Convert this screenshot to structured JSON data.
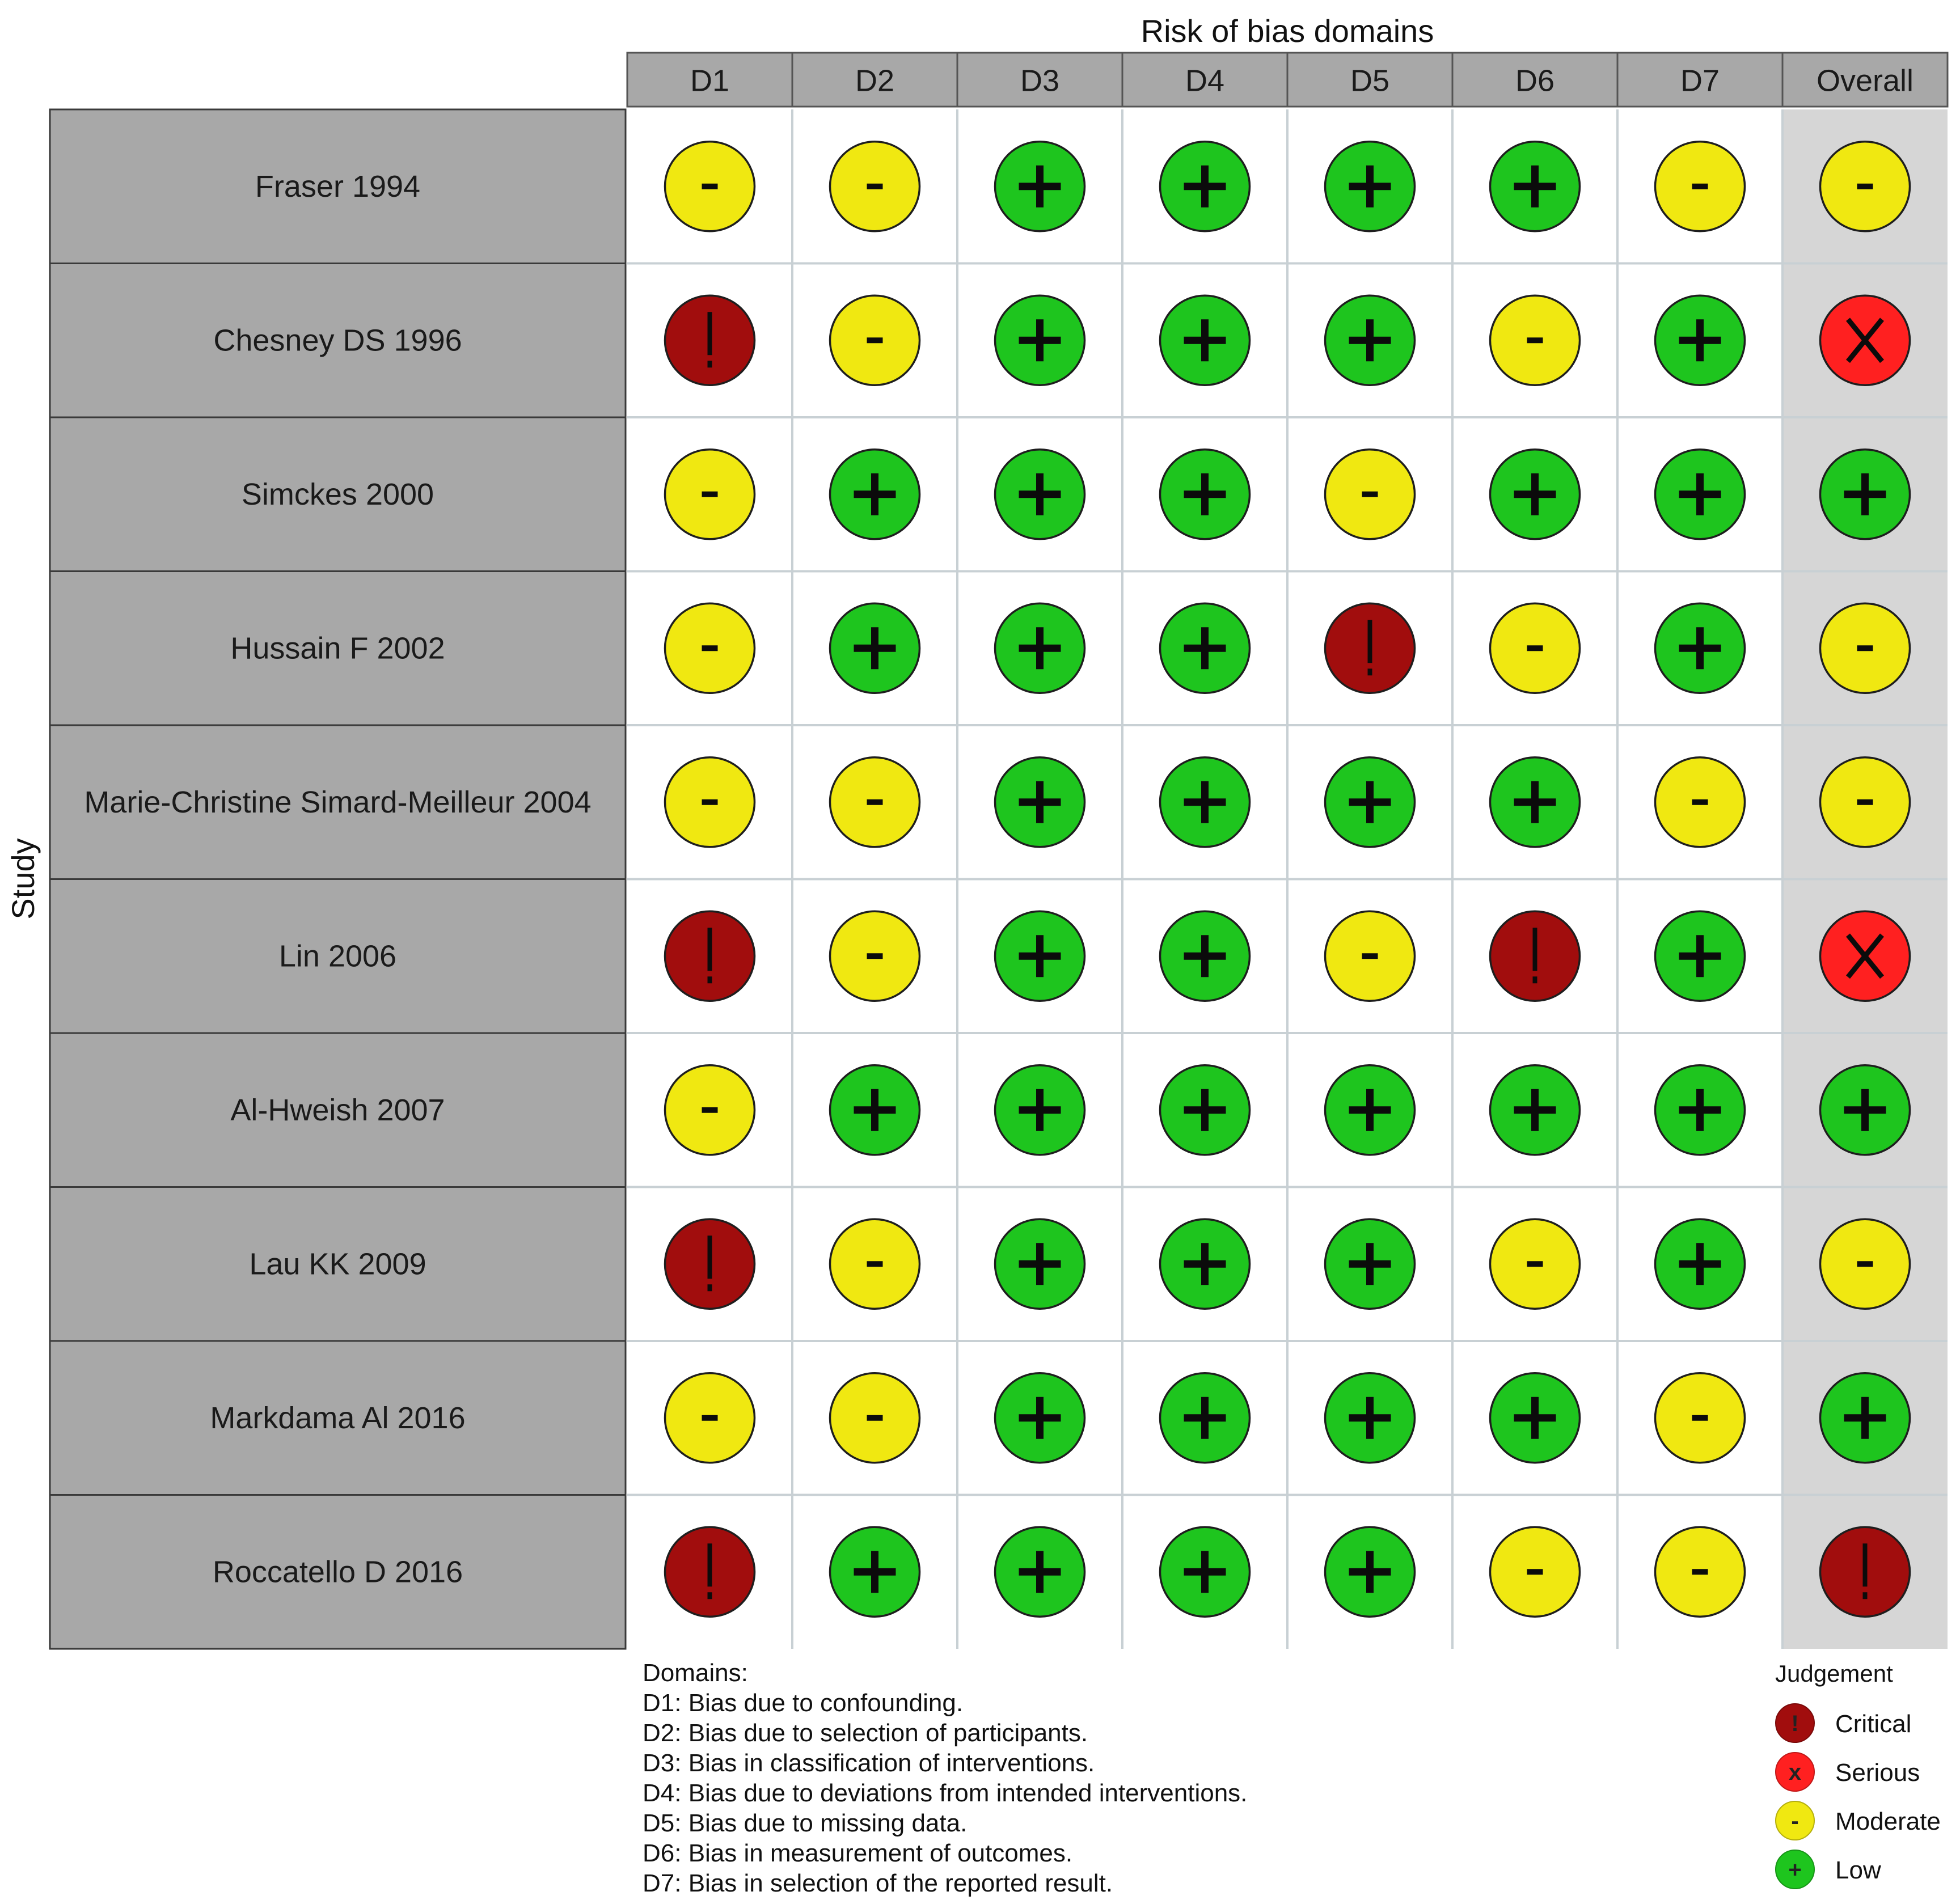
{
  "chart_data": {
    "type": "table",
    "title": "Risk of bias domains",
    "ylabel": "Study",
    "columns": [
      "D1",
      "D2",
      "D3",
      "D4",
      "D5",
      "D6",
      "D7",
      "Overall"
    ],
    "studies": [
      "Fraser 1994",
      "Chesney DS 1996",
      "Simckes 2000",
      "Hussain F 2002",
      "Marie-Christine Simard-Meilleur 2004",
      "Lin 2006",
      "Al-Hweish 2007",
      "Lau KK 2009",
      "Markdama Al 2016",
      "Roccatello D 2016"
    ],
    "judgements": [
      [
        "Moderate",
        "Moderate",
        "Low",
        "Low",
        "Low",
        "Low",
        "Moderate",
        "Moderate"
      ],
      [
        "Critical",
        "Moderate",
        "Low",
        "Low",
        "Low",
        "Moderate",
        "Low",
        "Serious"
      ],
      [
        "Moderate",
        "Low",
        "Low",
        "Low",
        "Moderate",
        "Low",
        "Low",
        "Low"
      ],
      [
        "Moderate",
        "Low",
        "Low",
        "Low",
        "Critical",
        "Moderate",
        "Low",
        "Moderate"
      ],
      [
        "Moderate",
        "Moderate",
        "Low",
        "Low",
        "Low",
        "Low",
        "Moderate",
        "Moderate"
      ],
      [
        "Critical",
        "Moderate",
        "Low",
        "Low",
        "Moderate",
        "Critical",
        "Low",
        "Serious"
      ],
      [
        "Moderate",
        "Low",
        "Low",
        "Low",
        "Low",
        "Low",
        "Low",
        "Low"
      ],
      [
        "Critical",
        "Moderate",
        "Low",
        "Low",
        "Low",
        "Moderate",
        "Low",
        "Moderate"
      ],
      [
        "Moderate",
        "Moderate",
        "Low",
        "Low",
        "Low",
        "Low",
        "Moderate",
        "Low"
      ],
      [
        "Critical",
        "Low",
        "Low",
        "Low",
        "Low",
        "Moderate",
        "Moderate",
        "Critical"
      ]
    ],
    "judgement_styles": {
      "Critical": {
        "color": "#a10d0d",
        "symbol": "!"
      },
      "Serious": {
        "color": "#ff2020",
        "symbol": "X"
      },
      "Moderate": {
        "color": "#f0e811",
        "symbol": "-"
      },
      "Low": {
        "color": "#1ec51e",
        "symbol": "+"
      }
    },
    "domains_title": "Domains:",
    "domain_descriptions": [
      "D1: Bias due to confounding.",
      "D2: Bias due to selection of participants.",
      "D3: Bias in classification of interventions.",
      "D4: Bias due to deviations from intended interventions.",
      "D5: Bias due to missing data.",
      "D6: Bias in measurement of outcomes.",
      "D7: Bias in selection of the reported result."
    ],
    "legend_title": "Judgement",
    "legend_items": [
      "Critical",
      "Serious",
      "Moderate",
      "Low"
    ],
    "legend_symbols": [
      "!",
      "x",
      "-",
      "+"
    ]
  },
  "colors": {
    "header_fill": "#a8a8a8",
    "study_fill": "#a8a8a8",
    "overall_column_fill": "#d6d6d6",
    "grid_line": "#c8d0d4"
  }
}
